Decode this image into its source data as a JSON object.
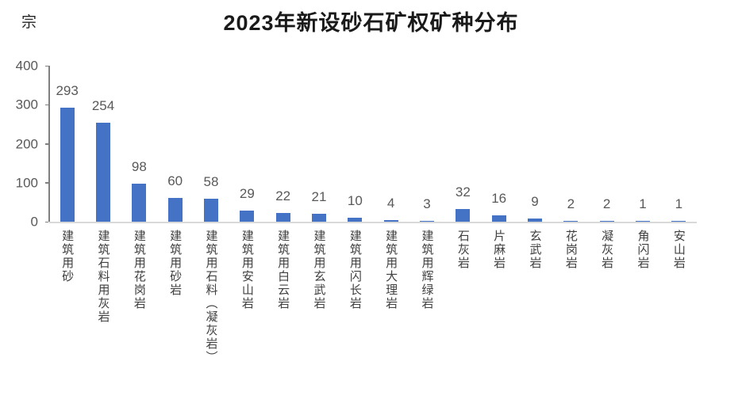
{
  "chart_data": {
    "type": "bar",
    "title": "2023年新设砂石矿权矿种分布",
    "unit_label": "宗",
    "categories": [
      "建筑用砂",
      "建筑石料用灰岩",
      "建筑用花岗岩",
      "建筑用砂岩",
      "建筑用石料（凝灰岩）",
      "建筑用安山岩",
      "建筑用白云岩",
      "建筑用玄武岩",
      "建筑用闪长岩",
      "建筑用大理岩",
      "建筑用辉绿岩",
      "石灰岩",
      "片麻岩",
      "玄武岩",
      "花岗岩",
      "凝灰岩",
      "角闪岩",
      "安山岩"
    ],
    "values": [
      293,
      254,
      98,
      60,
      58,
      29,
      22,
      21,
      10,
      4,
      3,
      32,
      16,
      9,
      2,
      2,
      1,
      1
    ],
    "xlabel": "",
    "ylabel": "宗",
    "ylim": [
      0,
      400
    ],
    "yticks": [
      0,
      100,
      200,
      300,
      400
    ],
    "grid": false,
    "legend": "none",
    "data_labels": true,
    "colors": {
      "bar": "#4472C4",
      "value_label": "#595959",
      "tick_label": "#595959",
      "category_label": "#404040",
      "y_axis_line": "#808080",
      "x_axis_line": "#D9D9D9",
      "title": "#1A1A1A",
      "background": "#FFFFFF"
    }
  }
}
